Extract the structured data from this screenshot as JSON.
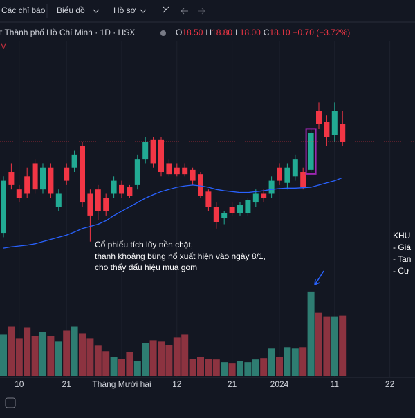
{
  "toolbar": {
    "items": [
      "Các chỉ báo",
      "Biểu đồ",
      "Hồ sơ"
    ]
  },
  "header": {
    "symbol": "t Thành phố Hồ Chí Minh · 1D · HSX",
    "open_label": "O",
    "open": "18.50",
    "high_label": "H",
    "high": "18.80",
    "low_label": "L",
    "low": "18.00",
    "close_label": "C",
    "close": "18.10",
    "change": "−0.70 (−3.72%)",
    "sub": "M"
  },
  "annotation": [
    "Cổ phiếu tích lũy nền chặt,",
    "thanh khoảng bùng nổ xuất hiện vào ngày 8/1,",
    "cho thấy dấu hiệu mua gom"
  ],
  "side_note": [
    "KHU",
    "- Giá",
    "- Tan",
    "- Cư"
  ],
  "chart_data": {
    "type": "candlestick",
    "categories": [
      null,
      null,
      "10",
      null,
      null,
      null,
      null,
      null,
      "21",
      null,
      null,
      null,
      null,
      null,
      null,
      "Tháng Mười hai",
      null,
      null,
      null,
      null,
      null,
      null,
      "12",
      null,
      null,
      null,
      null,
      null,
      null,
      "21",
      null,
      null,
      null,
      null,
      null,
      "2024",
      null,
      null,
      null,
      null,
      null,
      null,
      "11",
      null,
      null,
      null,
      null,
      null,
      null,
      "22"
    ],
    "open": [
      16.0,
      17.4,
      17.0,
      17.3,
      17.6,
      17.0,
      17.5,
      16.6,
      17.5,
      17.5,
      18.0,
      16.9,
      17.0,
      16.8,
      16.9,
      17.1,
      17.05,
      17.1,
      17.7,
      18.15,
      18.15,
      17.6,
      17.5,
      17.5,
      17.45,
      17.35,
      16.95,
      16.6,
      16.35,
      16.6,
      16.45,
      16.45,
      16.7,
      16.9,
      16.9,
      17.5,
      17.15,
      17.3,
      17.4,
      17.45,
      18.8,
      18.55,
      18.25,
      18.5,
      null,
      null,
      null,
      null,
      null,
      null
    ],
    "high": [
      17.3,
      17.6,
      17.1,
      17.5,
      17.7,
      17.6,
      17.6,
      17.0,
      17.6,
      17.9,
      18.1,
      17.0,
      17.1,
      16.9,
      17.3,
      17.2,
      17.1,
      17.8,
      18.2,
      18.2,
      18.2,
      17.7,
      17.6,
      17.6,
      17.5,
      17.4,
      17.0,
      16.7,
      16.5,
      16.7,
      16.7,
      16.8,
      17.0,
      17.0,
      17.3,
      17.6,
      17.6,
      17.8,
      17.5,
      18.4,
      19.0,
      18.7,
      19.0,
      18.8,
      null,
      null,
      null,
      null,
      null,
      null
    ],
    "low": [
      15.9,
      17.0,
      16.7,
      16.8,
      16.9,
      16.9,
      16.8,
      16.5,
      17.1,
      17.4,
      16.6,
      15.8,
      16.3,
      16.4,
      16.8,
      16.8,
      16.8,
      17.0,
      17.6,
      17.5,
      17.3,
      17.3,
      17.3,
      17.3,
      17.1,
      16.8,
      16.5,
      16.1,
      16.2,
      16.4,
      16.4,
      16.4,
      16.6,
      16.7,
      16.8,
      17.1,
      17.0,
      17.2,
      17.0,
      17.4,
      18.4,
      18.0,
      18.1,
      18.0,
      null,
      null,
      null,
      null,
      null,
      null
    ],
    "close": [
      17.2,
      17.1,
      16.8,
      16.9,
      17.0,
      17.5,
      16.9,
      16.9,
      17.2,
      17.8,
      16.7,
      16.4,
      16.5,
      16.5,
      17.2,
      16.9,
      16.85,
      17.7,
      18.1,
      17.6,
      17.4,
      17.35,
      17.35,
      17.35,
      17.2,
      16.85,
      16.6,
      16.25,
      16.45,
      16.45,
      16.65,
      16.75,
      16.9,
      16.8,
      17.2,
      17.2,
      17.5,
      17.7,
      17.05,
      18.3,
      18.5,
      18.2,
      18.8,
      18.1,
      null,
      null,
      null,
      null,
      null,
      null
    ],
    "ma": [
      15.65,
      15.68,
      15.7,
      15.72,
      15.75,
      15.8,
      15.85,
      15.9,
      15.95,
      16.02,
      16.1,
      16.15,
      16.2,
      16.28,
      16.4,
      16.5,
      16.6,
      16.7,
      16.8,
      16.88,
      16.95,
      17.0,
      17.05,
      17.08,
      17.1,
      17.08,
      17.05,
      17.0,
      16.97,
      16.95,
      16.93,
      16.93,
      16.95,
      16.97,
      17.0,
      17.02,
      17.03,
      17.03,
      17.04,
      17.05,
      17.1,
      17.15,
      17.2,
      17.27,
      null,
      null,
      null,
      null,
      null,
      null
    ],
    "volume": [
      60,
      72,
      55,
      70,
      58,
      64,
      58,
      50,
      66,
      72,
      62,
      55,
      44,
      36,
      28,
      25,
      35,
      22,
      48,
      52,
      50,
      45,
      56,
      60,
      25,
      28,
      25,
      24,
      20,
      18,
      22,
      20,
      24,
      26,
      40,
      28,
      42,
      40,
      42,
      123,
      92,
      86,
      86,
      88,
      null,
      null,
      null,
      null,
      null,
      null
    ],
    "ylim": [
      15,
      20.5
    ],
    "volume_ylim": [
      0,
      140
    ],
    "up_color": "#22ab94",
    "down_color": "#f23645",
    "up_volume_color": "#2e7d72",
    "down_volume_color": "#8c3340",
    "ma_color": "#2962ff",
    "highlight": 39
  }
}
